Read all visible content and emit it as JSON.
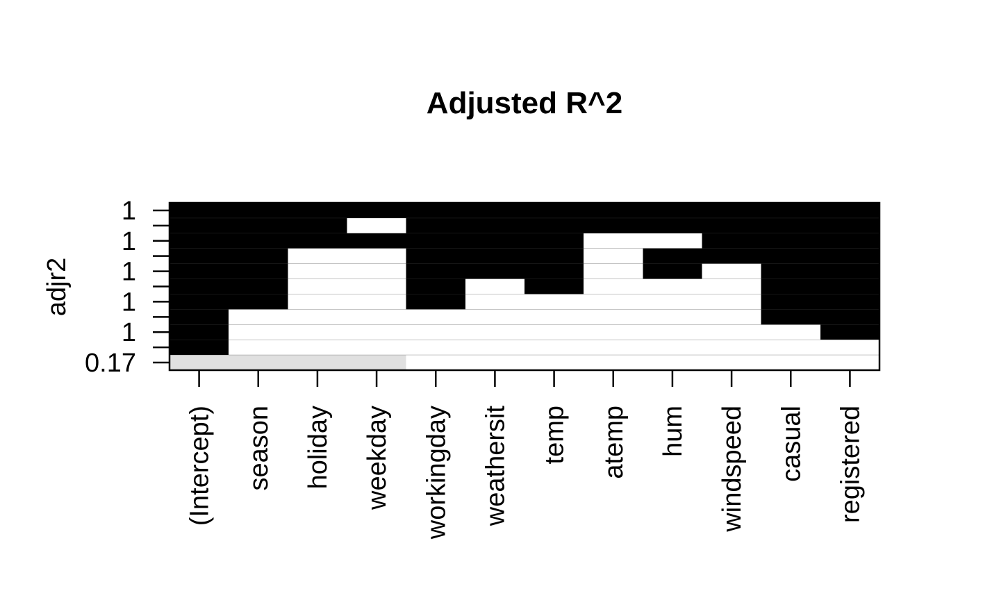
{
  "chart_data": {
    "type": "heatmap",
    "title": "Adjusted R^2",
    "ylabel": "adjr2",
    "xlabel": "",
    "variables": [
      "(Intercept)",
      "season",
      "holiday",
      "weekday",
      "workingday",
      "weathersit",
      "temp",
      "atemp",
      "hum",
      "windspeed",
      "casual",
      "registered"
    ],
    "row_labels": [
      "1",
      "",
      "1",
      "",
      "1",
      "",
      "1",
      "",
      "1",
      "",
      "0.17"
    ],
    "rows_top_to_bottom": [
      [
        1,
        1,
        1,
        1,
        1,
        1,
        1,
        1,
        1,
        1,
        1,
        1
      ],
      [
        1,
        1,
        1,
        0,
        1,
        1,
        1,
        1,
        1,
        1,
        1,
        1
      ],
      [
        1,
        1,
        1,
        1,
        1,
        1,
        1,
        0,
        0,
        1,
        1,
        1
      ],
      [
        1,
        1,
        0,
        0,
        1,
        1,
        1,
        0,
        1,
        1,
        1,
        1
      ],
      [
        1,
        1,
        0,
        0,
        1,
        1,
        1,
        0,
        1,
        0,
        1,
        1
      ],
      [
        1,
        1,
        0,
        0,
        1,
        0,
        1,
        0,
        0,
        0,
        1,
        1
      ],
      [
        1,
        1,
        0,
        0,
        1,
        0,
        0,
        0,
        0,
        0,
        1,
        1
      ],
      [
        1,
        0,
        0,
        0,
        0,
        0,
        0,
        0,
        0,
        0,
        1,
        1
      ],
      [
        1,
        0,
        0,
        0,
        0,
        0,
        0,
        0,
        0,
        0,
        0,
        1
      ],
      [
        1,
        0,
        0,
        0,
        0,
        0,
        0,
        0,
        0,
        0,
        0,
        0
      ],
      [
        2,
        2,
        2,
        2,
        0,
        0,
        0,
        0,
        0,
        0,
        0,
        0
      ]
    ],
    "colors": {
      "selected": "#000000",
      "baseline": "#e0e0e0",
      "empty": "#ffffff",
      "axis": "#000000"
    }
  }
}
